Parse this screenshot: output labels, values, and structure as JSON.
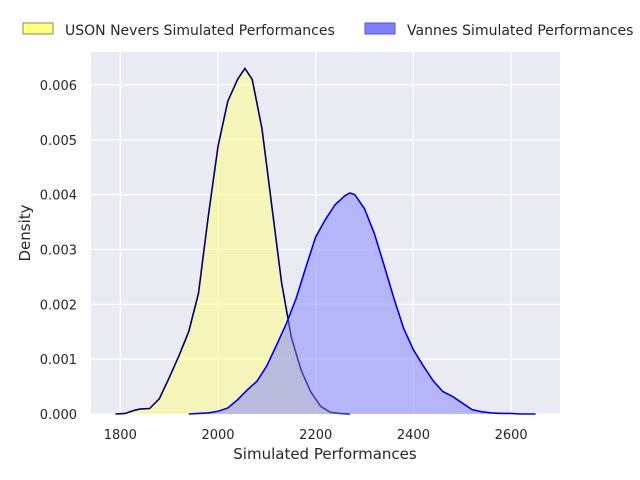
{
  "chart_data": {
    "type": "area",
    "title": "",
    "xlabel": "Simulated Performances",
    "ylabel": "Density",
    "xlim": [
      1740,
      2700
    ],
    "ylim": [
      0,
      0.0066
    ],
    "xticks": [
      1800,
      2000,
      2200,
      2400,
      2600
    ],
    "xtick_labels": [
      "1800",
      "2000",
      "2200",
      "2400",
      "2600"
    ],
    "yticks": [
      0.0,
      0.001,
      0.002,
      0.003,
      0.004,
      0.005,
      0.006
    ],
    "ytick_labels": [
      "0.000",
      "0.001",
      "0.002",
      "0.003",
      "0.004",
      "0.005",
      "0.006"
    ],
    "grid": true,
    "legend_position": "top",
    "series": [
      {
        "name": "USON Nevers Simulated Performances",
        "fill": "#ffff80",
        "line": "#000060",
        "x": [
          1790,
          1810,
          1830,
          1840,
          1860,
          1880,
          1900,
          1920,
          1940,
          1960,
          1980,
          2000,
          2020,
          2040,
          2055,
          2070,
          2090,
          2110,
          2130,
          2150,
          2170,
          2190,
          2210,
          2230,
          2250,
          2270
        ],
        "y": [
          0.0,
          1e-05,
          7e-05,
          9e-05,
          0.0001,
          0.00028,
          0.00066,
          0.00106,
          0.0015,
          0.0022,
          0.0036,
          0.00488,
          0.0057,
          0.0061,
          0.0063,
          0.0061,
          0.0052,
          0.0038,
          0.0024,
          0.0014,
          0.0008,
          0.0004,
          0.00014,
          3e-05,
          1e-05,
          0.0
        ]
      },
      {
        "name": "Vannes Simulated Performances",
        "fill": "#8080ff",
        "line": "#0000ee",
        "x": [
          1940,
          1960,
          1980,
          2000,
          2020,
          2040,
          2060,
          2080,
          2100,
          2120,
          2140,
          2160,
          2180,
          2200,
          2220,
          2240,
          2260,
          2270,
          2280,
          2300,
          2320,
          2340,
          2360,
          2380,
          2400,
          2420,
          2440,
          2460,
          2480,
          2500,
          2520,
          2540,
          2560,
          2580,
          2600,
          2620,
          2650
        ],
        "y": [
          0.0,
          1e-05,
          2e-05,
          5e-05,
          0.00011,
          0.00026,
          0.00044,
          0.0006,
          0.00088,
          0.00126,
          0.00165,
          0.00211,
          0.00268,
          0.00323,
          0.00355,
          0.00382,
          0.00398,
          0.00403,
          0.004,
          0.00374,
          0.00329,
          0.00271,
          0.00211,
          0.00156,
          0.00117,
          0.00088,
          0.00061,
          0.00041,
          0.00032,
          0.0002,
          8e-05,
          4e-05,
          2e-05,
          1e-05,
          1e-05,
          0.0,
          0.0
        ]
      }
    ]
  }
}
